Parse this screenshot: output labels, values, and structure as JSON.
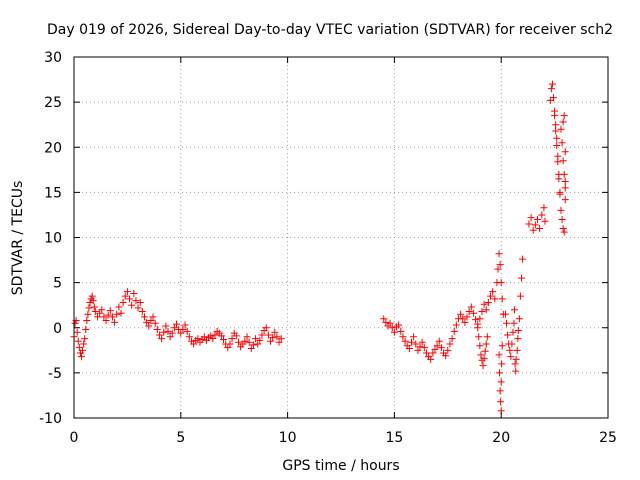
{
  "chart_data": {
    "type": "scatter",
    "title": "Day 019 of 2026, Sidereal Day-to-day VTEC variation (SDTVAR) for receiver sch2",
    "xlabel": "GPS time / hours",
    "ylabel": "SDTVAR / TECUs",
    "xlim": [
      0,
      25
    ],
    "ylim": [
      -10,
      30
    ],
    "xticks": [
      0,
      5,
      10,
      15,
      20,
      25
    ],
    "yticks": [
      -10,
      -5,
      0,
      5,
      10,
      15,
      20,
      25,
      30
    ],
    "grid": true,
    "marker": "+",
    "color": "#ff0000",
    "series": [
      {
        "name": "sch2",
        "points": [
          [
            0.0,
            -1.0
          ],
          [
            0.05,
            0.5
          ],
          [
            0.1,
            0.8
          ],
          [
            0.15,
            -0.5
          ],
          [
            0.2,
            -1.5
          ],
          [
            0.25,
            -2.2
          ],
          [
            0.3,
            -2.8
          ],
          [
            0.35,
            -3.2
          ],
          [
            0.4,
            -2.5
          ],
          [
            0.45,
            -1.8
          ],
          [
            0.5,
            -1.2
          ],
          [
            0.55,
            -0.2
          ],
          [
            0.6,
            0.8
          ],
          [
            0.65,
            1.5
          ],
          [
            0.7,
            2.2
          ],
          [
            0.75,
            2.8
          ],
          [
            0.8,
            3.2
          ],
          [
            0.85,
            3.5
          ],
          [
            0.9,
            3.0
          ],
          [
            0.95,
            2.3
          ],
          [
            1.0,
            1.8
          ],
          [
            1.1,
            1.2
          ],
          [
            1.2,
            1.6
          ],
          [
            1.3,
            2.0
          ],
          [
            1.4,
            1.2
          ],
          [
            1.5,
            0.8
          ],
          [
            1.6,
            1.4
          ],
          [
            1.7,
            1.9
          ],
          [
            1.8,
            1.2
          ],
          [
            1.9,
            0.6
          ],
          [
            2.0,
            1.5
          ],
          [
            2.1,
            2.3
          ],
          [
            2.2,
            1.6
          ],
          [
            2.3,
            2.8
          ],
          [
            2.4,
            3.5
          ],
          [
            2.5,
            4.0
          ],
          [
            2.6,
            3.2
          ],
          [
            2.7,
            2.5
          ],
          [
            2.8,
            3.8
          ],
          [
            2.9,
            3.0
          ],
          [
            3.0,
            2.2
          ],
          [
            3.1,
            2.8
          ],
          [
            3.2,
            1.8
          ],
          [
            3.3,
            1.2
          ],
          [
            3.4,
            0.6
          ],
          [
            3.5,
            0.2
          ],
          [
            3.6,
            0.8
          ],
          [
            3.7,
            1.2
          ],
          [
            3.8,
            0.5
          ],
          [
            3.9,
            -0.2
          ],
          [
            4.0,
            -0.8
          ],
          [
            4.1,
            -1.2
          ],
          [
            4.2,
            -0.5
          ],
          [
            4.3,
            0.2
          ],
          [
            4.4,
            -0.4
          ],
          [
            4.5,
            -1.0
          ],
          [
            4.6,
            -0.6
          ],
          [
            4.7,
            0.0
          ],
          [
            4.8,
            0.4
          ],
          [
            4.9,
            -0.2
          ],
          [
            5.0,
            -0.6
          ],
          [
            5.1,
            -0.2
          ],
          [
            5.2,
            0.3
          ],
          [
            5.3,
            -0.4
          ],
          [
            5.4,
            -1.0
          ],
          [
            5.5,
            -1.5
          ],
          [
            5.6,
            -1.8
          ],
          [
            5.7,
            -1.4
          ],
          [
            5.8,
            -1.2
          ],
          [
            5.9,
            -1.6
          ],
          [
            6.0,
            -1.3
          ],
          [
            6.1,
            -1.0
          ],
          [
            6.2,
            -1.4
          ],
          [
            6.3,
            -1.1
          ],
          [
            6.4,
            -0.9
          ],
          [
            6.5,
            -1.2
          ],
          [
            6.6,
            -0.8
          ],
          [
            6.7,
            -0.4
          ],
          [
            6.8,
            -0.6
          ],
          [
            6.9,
            -0.9
          ],
          [
            7.0,
            -1.3
          ],
          [
            7.1,
            -1.8
          ],
          [
            7.2,
            -2.2
          ],
          [
            7.3,
            -1.8
          ],
          [
            7.4,
            -1.2
          ],
          [
            7.5,
            -0.6
          ],
          [
            7.6,
            -0.9
          ],
          [
            7.7,
            -1.6
          ],
          [
            7.8,
            -2.1
          ],
          [
            7.9,
            -1.8
          ],
          [
            8.0,
            -1.5
          ],
          [
            8.1,
            -1.0
          ],
          [
            8.2,
            -1.6
          ],
          [
            8.3,
            -2.3
          ],
          [
            8.4,
            -1.9
          ],
          [
            8.5,
            -1.2
          ],
          [
            8.6,
            -1.8
          ],
          [
            8.7,
            -1.4
          ],
          [
            8.8,
            -0.8
          ],
          [
            8.9,
            -0.3
          ],
          [
            9.0,
            0.0
          ],
          [
            9.1,
            -0.8
          ],
          [
            9.2,
            -1.5
          ],
          [
            9.3,
            -1.1
          ],
          [
            9.4,
            -0.5
          ],
          [
            9.5,
            -1.0
          ],
          [
            9.6,
            -1.6
          ],
          [
            9.7,
            -1.2
          ],
          [
            14.5,
            1.0
          ],
          [
            14.6,
            0.6
          ],
          [
            14.7,
            0.2
          ],
          [
            14.8,
            0.5
          ],
          [
            14.9,
            0.0
          ],
          [
            15.0,
            -0.5
          ],
          [
            15.1,
            0.1
          ],
          [
            15.2,
            0.3
          ],
          [
            15.3,
            -0.4
          ],
          [
            15.4,
            -1.0
          ],
          [
            15.5,
            -1.5
          ],
          [
            15.6,
            -2.0
          ],
          [
            15.7,
            -2.3
          ],
          [
            15.8,
            -1.6
          ],
          [
            15.9,
            -1.0
          ],
          [
            16.0,
            -1.8
          ],
          [
            16.1,
            -2.5
          ],
          [
            16.2,
            -2.1
          ],
          [
            16.3,
            -1.6
          ],
          [
            16.4,
            -2.2
          ],
          [
            16.5,
            -2.8
          ],
          [
            16.6,
            -3.2
          ],
          [
            16.7,
            -3.5
          ],
          [
            16.8,
            -2.8
          ],
          [
            16.9,
            -2.4
          ],
          [
            17.0,
            -2.0
          ],
          [
            17.1,
            -1.5
          ],
          [
            17.2,
            -2.2
          ],
          [
            17.3,
            -2.8
          ],
          [
            17.4,
            -3.1
          ],
          [
            17.5,
            -2.5
          ],
          [
            17.6,
            -1.8
          ],
          [
            17.7,
            -1.2
          ],
          [
            17.8,
            -0.4
          ],
          [
            17.9,
            0.3
          ],
          [
            18.0,
            1.0
          ],
          [
            18.1,
            1.5
          ],
          [
            18.2,
            1.0
          ],
          [
            18.3,
            0.6
          ],
          [
            18.4,
            1.2
          ],
          [
            18.5,
            1.8
          ],
          [
            18.6,
            2.3
          ],
          [
            18.7,
            1.6
          ],
          [
            18.8,
            0.9
          ],
          [
            18.9,
            0.4
          ],
          [
            19.0,
            1.0
          ],
          [
            19.1,
            1.8
          ],
          [
            19.2,
            2.6
          ],
          [
            19.3,
            2.0
          ],
          [
            19.4,
            2.8
          ],
          [
            19.5,
            3.5
          ],
          [
            19.6,
            4.0
          ],
          [
            19.7,
            3.2
          ],
          [
            19.8,
            5.0
          ],
          [
            19.85,
            6.5
          ],
          [
            19.9,
            8.2
          ],
          [
            19.95,
            7.0
          ],
          [
            20.0,
            5.0
          ],
          [
            20.05,
            3.2
          ],
          [
            20.1,
            1.5
          ],
          [
            18.9,
            0.0
          ],
          [
            18.95,
            -1.0
          ],
          [
            19.0,
            -2.0
          ],
          [
            19.05,
            -3.0
          ],
          [
            19.1,
            -3.6
          ],
          [
            19.15,
            -4.2
          ],
          [
            19.2,
            -3.4
          ],
          [
            19.25,
            -2.6
          ],
          [
            19.3,
            -1.8
          ],
          [
            19.35,
            -1.0
          ],
          [
            19.9,
            -3.0
          ],
          [
            19.92,
            -5.0
          ],
          [
            19.95,
            -7.0
          ],
          [
            19.97,
            -8.2
          ],
          [
            20.0,
            -9.2
          ],
          [
            20.0,
            -6.0
          ],
          [
            20.02,
            -4.0
          ],
          [
            20.05,
            -2.0
          ],
          [
            20.2,
            1.5
          ],
          [
            20.25,
            0.5
          ],
          [
            20.3,
            -0.8
          ],
          [
            20.35,
            -1.8
          ],
          [
            20.4,
            -2.5
          ],
          [
            20.45,
            -3.2
          ],
          [
            20.5,
            -1.8
          ],
          [
            20.55,
            -0.5
          ],
          [
            20.6,
            0.5
          ],
          [
            20.62,
            2.0
          ],
          [
            20.65,
            -4.0
          ],
          [
            20.68,
            -4.8
          ],
          [
            20.7,
            -3.5
          ],
          [
            20.75,
            -2.5
          ],
          [
            20.78,
            -1.2
          ],
          [
            20.8,
            -0.3
          ],
          [
            20.85,
            1.0
          ],
          [
            20.9,
            3.5
          ],
          [
            20.95,
            5.5
          ],
          [
            21.0,
            7.6
          ],
          [
            21.3,
            11.5
          ],
          [
            21.4,
            12.2
          ],
          [
            21.5,
            10.8
          ],
          [
            21.6,
            11.4
          ],
          [
            21.7,
            12.0
          ],
          [
            21.8,
            11.0
          ],
          [
            21.9,
            12.5
          ],
          [
            22.0,
            13.3
          ],
          [
            22.05,
            11.8
          ],
          [
            22.3,
            25.2
          ],
          [
            22.35,
            26.5
          ],
          [
            22.4,
            27.0
          ],
          [
            22.45,
            25.5
          ],
          [
            22.5,
            24.0
          ],
          [
            22.55,
            22.5
          ],
          [
            22.6,
            21.0
          ],
          [
            22.65,
            19.0
          ],
          [
            22.7,
            16.5
          ],
          [
            22.75,
            15.0
          ],
          [
            22.5,
            23.5
          ],
          [
            22.55,
            21.8
          ],
          [
            22.6,
            20.2
          ],
          [
            22.65,
            18.4
          ],
          [
            22.7,
            17.0
          ],
          [
            22.75,
            14.8
          ],
          [
            22.8,
            13.0
          ],
          [
            22.85,
            12.0
          ],
          [
            22.9,
            11.0
          ],
          [
            22.95,
            10.6
          ],
          [
            22.8,
            22.0
          ],
          [
            22.85,
            20.5
          ],
          [
            22.9,
            18.5
          ],
          [
            22.95,
            17.0
          ],
          [
            23.0,
            15.5
          ],
          [
            23.0,
            14.2
          ],
          [
            22.95,
            23.5
          ],
          [
            22.9,
            22.8
          ],
          [
            23.0,
            19.5
          ],
          [
            23.0,
            16.2
          ]
        ]
      }
    ]
  }
}
